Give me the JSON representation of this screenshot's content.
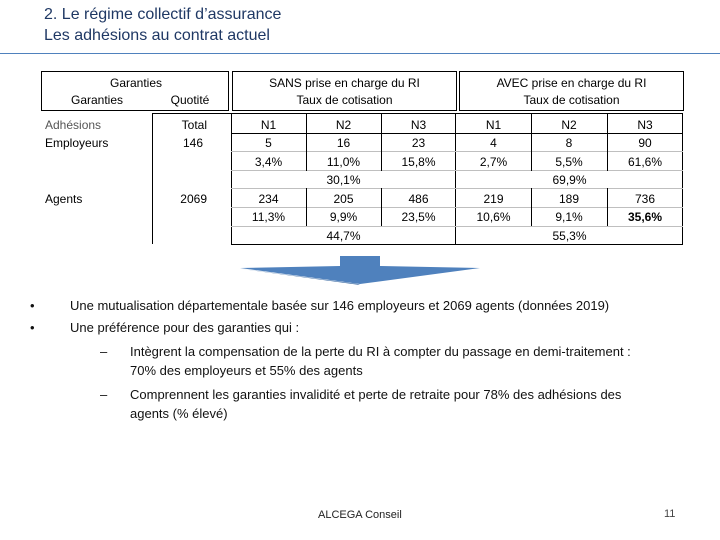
{
  "slide": {
    "title_line1": "2. Le régime collectif d’assurance",
    "title_line2": "Les adhésions au contrat actuel",
    "footer": "ALCEGA Conseil",
    "page_number": "11"
  },
  "table": {
    "header": {
      "garanties_top": "Garanties",
      "garanties_sub": "Garanties",
      "quotite": "Quotité",
      "sans_title": "SANS prise en charge du RI",
      "sans_sub": "Taux de cotisation",
      "avec_title": "AVEC prise en charge du RI",
      "avec_sub": "Taux de cotisation"
    },
    "row_labels": {
      "adhesions": "Adhésions",
      "total": "Total",
      "employeurs": "Employeurs",
      "employeurs_total": "146",
      "agents": "Agents",
      "agents_total": "2069"
    },
    "levels": [
      "N1",
      "N2",
      "N3",
      "N1",
      "N2",
      "N3"
    ],
    "employeurs_counts": [
      "5",
      "16",
      "23",
      "4",
      "8",
      "90"
    ],
    "employeurs_pct": [
      "3,4%",
      "11,0%",
      "15,8%",
      "2,7%",
      "5,5%",
      "61,6%"
    ],
    "employeurs_group": [
      "30,1%",
      "69,9%"
    ],
    "agents_counts": [
      "234",
      "205",
      "486",
      "219",
      "189",
      "736"
    ],
    "agents_pct": [
      "11,3%",
      "9,9%",
      "23,5%",
      "10,6%",
      "9,1%",
      "35,6%"
    ],
    "agents_group": [
      "44,7%",
      "55,3%"
    ]
  },
  "bullets": {
    "b1": "Une mutualisation départementale basée sur 146 employeurs et 2069 agents (données 2019)",
    "b2": "Une préférence pour des garanties qui :",
    "s1_line1": "Intègrent la compensation de la perte du RI à compter du passage en demi-traitement :",
    "s1_line2": "70% des employeurs et 55% des agents",
    "s2_line1": "Comprennent les garanties invalidité et perte de retraite pour 78% des adhésions des",
    "s2_line2": "agents (% élevé)",
    "bullet_symbol": "•",
    "dash_symbol": "–"
  },
  "colors": {
    "title": "#1f3864",
    "arrow": "#4f81bd",
    "rule": "#4f81bd"
  }
}
